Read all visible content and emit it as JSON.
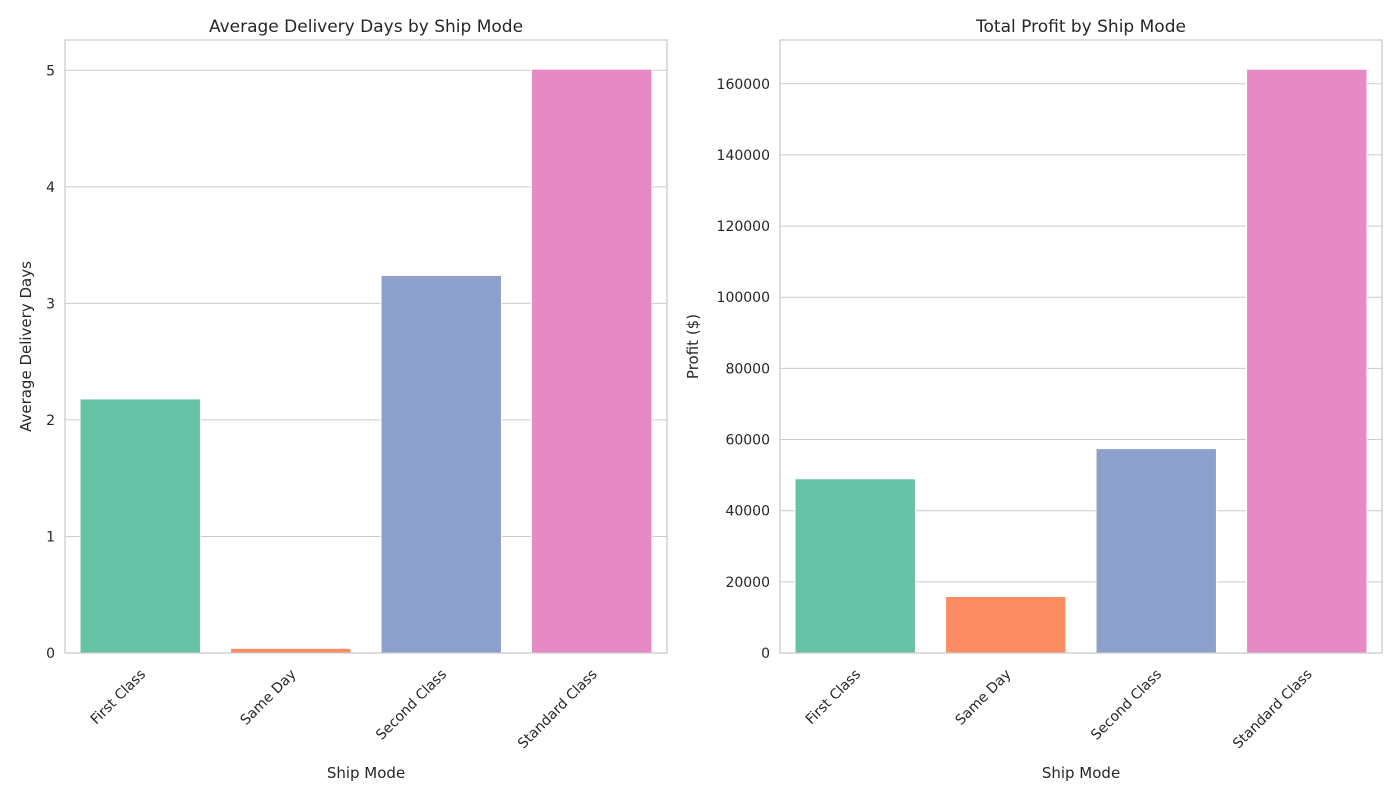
{
  "chart_data": [
    {
      "type": "bar",
      "title": "Average Delivery Days by Ship Mode",
      "xlabel": "Ship Mode",
      "ylabel": "Average Delivery Days",
      "categories": [
        "First Class",
        "Same Day",
        "Second Class",
        "Standard Class"
      ],
      "values": [
        2.18,
        0.04,
        3.24,
        5.01
      ],
      "colors": [
        "#66c2a5",
        "#fc8d62",
        "#8da0cb",
        "#e78ac3"
      ],
      "ylim": [
        0,
        5.26
      ],
      "yticks": [
        0,
        1,
        2,
        3,
        4,
        5
      ],
      "ytick_labels": [
        "0",
        "1",
        "2",
        "3",
        "4",
        "5"
      ],
      "grid": true
    },
    {
      "type": "bar",
      "title": "Total Profit by Ship Mode",
      "xlabel": "Ship Mode",
      "ylabel": "Profit ($)",
      "categories": [
        "First Class",
        "Same Day",
        "Second Class",
        "Standard Class"
      ],
      "values": [
        48970,
        15890,
        57450,
        164090
      ],
      "colors": [
        "#66c2a5",
        "#fc8d62",
        "#8da0cb",
        "#e78ac3"
      ],
      "ylim": [
        0,
        172300
      ],
      "yticks": [
        0,
        20000,
        40000,
        60000,
        80000,
        100000,
        120000,
        140000,
        160000
      ],
      "ytick_labels": [
        "0",
        "20000",
        "40000",
        "60000",
        "80000",
        "100000",
        "120000",
        "140000",
        "160000"
      ],
      "grid": true
    }
  ]
}
